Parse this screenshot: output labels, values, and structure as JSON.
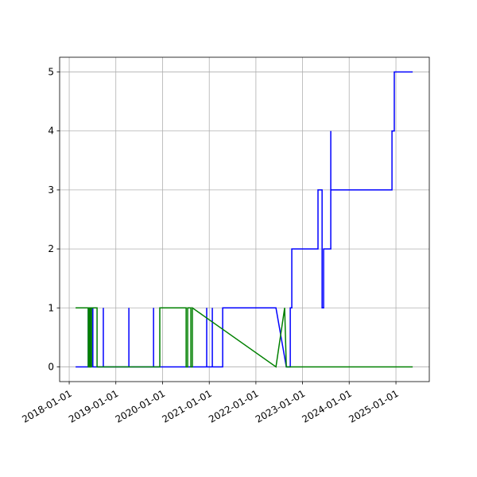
{
  "chart_data": {
    "type": "line",
    "xlim": [
      "2017-10-18",
      "2025-09-19"
    ],
    "xticks": [
      "2018-01-01",
      "2019-01-01",
      "2020-01-01",
      "2021-01-01",
      "2022-01-01",
      "2023-01-01",
      "2024-01-01",
      "2025-01-01"
    ],
    "ylim": [
      -0.25,
      5.25
    ],
    "yticks": [
      0,
      1,
      2,
      3,
      4,
      5
    ],
    "grid": true,
    "series": [
      {
        "color": "#0000ff",
        "x": [
          "2018-02-20",
          "2018-05-30",
          "2018-05-30",
          "2018-06-10",
          "2018-06-10",
          "2018-06-20",
          "2018-06-20",
          "2018-07-05",
          "2018-07-05",
          "2018-09-25",
          "2018-09-25",
          "2018-09-25",
          "2019-04-13",
          "2019-04-13",
          "2019-04-13",
          "2019-10-23",
          "2019-10-23",
          "2019-10-23",
          "2020-12-12",
          "2020-12-12",
          "2020-12-12",
          "2021-01-25",
          "2021-01-25",
          "2021-01-25",
          "2021-04-16",
          "2021-04-16",
          "2022-06-07",
          "2022-08-27",
          "2022-09-27",
          "2022-09-27",
          "2022-10-09",
          "2022-10-09",
          "2023-05-02",
          "2023-05-02",
          "2023-06-03",
          "2023-06-03",
          "2023-06-15",
          "2023-06-15",
          "2023-08-10",
          "2023-08-10",
          "2023-08-10",
          "2024-12-01",
          "2024-12-01",
          "2024-12-19",
          "2024-12-19",
          "2025-05-12"
        ],
        "values": [
          0,
          0,
          1,
          1,
          0,
          0,
          1,
          1,
          0,
          0,
          1,
          0,
          0,
          1,
          0,
          0,
          1,
          0,
          0,
          1,
          0,
          0,
          1,
          0,
          0,
          1,
          1,
          0,
          0,
          1,
          1,
          2,
          2,
          3,
          3,
          1,
          1,
          2,
          2,
          4,
          3,
          3,
          4,
          4,
          5,
          5
        ]
      },
      {
        "color": "#008000",
        "x": [
          "2018-02-20",
          "2018-05-30",
          "2018-05-30",
          "2018-06-08",
          "2018-06-08",
          "2018-06-15",
          "2018-06-15",
          "2018-06-25",
          "2018-06-25",
          "2018-08-07",
          "2018-08-07",
          "2019-12-11",
          "2019-12-11",
          "2020-07-04",
          "2020-07-04",
          "2020-07-16",
          "2020-07-16",
          "2020-08-10",
          "2020-08-10",
          "2020-08-22",
          "2020-08-22",
          "2022-06-07",
          "2022-08-14",
          "2022-08-27",
          "2025-05-12"
        ],
        "values": [
          1,
          1,
          0,
          0,
          1,
          1,
          0,
          0,
          1,
          1,
          0,
          0,
          1,
          1,
          0,
          0,
          1,
          1,
          0,
          0,
          1,
          0,
          1,
          0,
          0
        ]
      }
    ]
  }
}
